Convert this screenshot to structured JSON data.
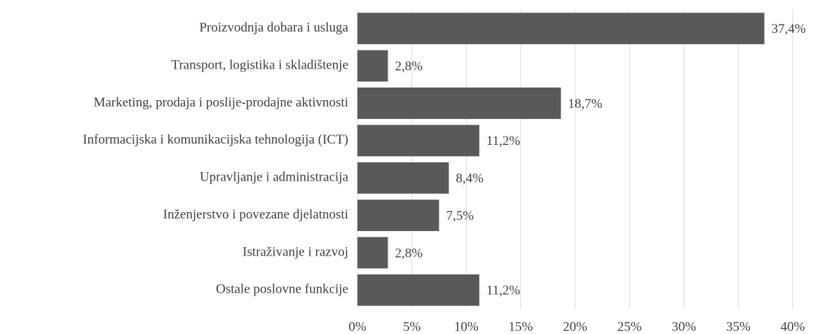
{
  "chart_data": {
    "type": "bar",
    "orientation": "horizontal",
    "categories": [
      "Proizvodnja dobara i usluga",
      "Transport, logistika i skladištenje",
      "Marketing, prodaja i poslije-prodajne aktivnosti",
      "Informacijska i komunikacijska tehnologija (ICT)",
      "Upravljanje i administracija",
      "Inženjerstvo i povezane djelatnosti",
      "Istraživanje i razvoj",
      "Ostale poslovne funkcije"
    ],
    "values": [
      37.4,
      2.8,
      18.7,
      11.2,
      8.4,
      7.5,
      2.8,
      11.2
    ],
    "value_labels": [
      "37,4%",
      "2,8%",
      "18,7%",
      "11,2%",
      "8,4%",
      "7,5%",
      "2,8%",
      "11,2%"
    ],
    "color": "#595959",
    "xlim": [
      0,
      40
    ],
    "xticks": [
      {
        "value": 0,
        "label": "0%"
      },
      {
        "value": 5,
        "label": "5%"
      },
      {
        "value": 10,
        "label": "10%"
      },
      {
        "value": 15,
        "label": "15%"
      },
      {
        "value": 20,
        "label": "20%"
      },
      {
        "value": 25,
        "label": "25%"
      },
      {
        "value": 30,
        "label": "30%"
      },
      {
        "value": 35,
        "label": "35%"
      },
      {
        "value": 40,
        "label": "40%"
      }
    ],
    "grid": true
  }
}
